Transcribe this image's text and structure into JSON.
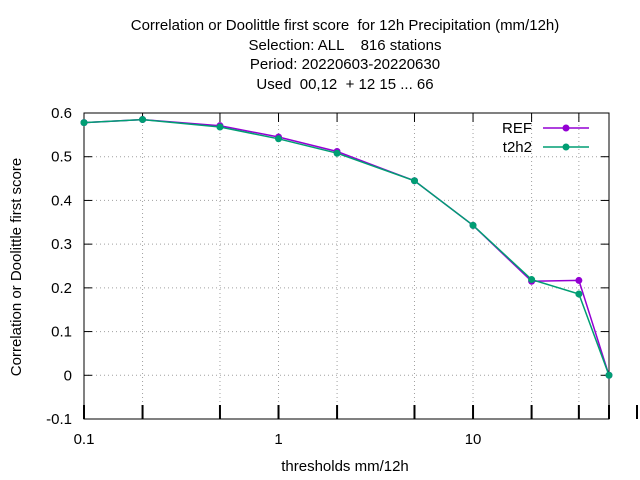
{
  "chart_data": {
    "type": "line",
    "title_lines": [
      "Correlation or Doolittle first score  for 12h Precipitation (mm/12h)",
      "Selection: ALL    816 stations",
      "Period: 20220603-20220630",
      "Used  00,12  + 12 15 ... 66"
    ],
    "xlabel": "thresholds mm/12h",
    "ylabel": "Correlation or Doolittle first score",
    "xscale": "log",
    "xlim": [
      0.1,
      50
    ],
    "ylim": [
      -0.1,
      0.6
    ],
    "xticks": [
      0.1,
      1,
      10
    ],
    "xtick_labels": [
      "0.1",
      "1",
      "10"
    ],
    "yticks": [
      -0.1,
      0,
      0.1,
      0.2,
      0.3,
      0.4,
      0.5,
      0.6
    ],
    "ytick_labels": [
      "-0.1",
      "0",
      "0.1",
      "0.2",
      "0.3",
      "0.4",
      "0.5",
      "0.6"
    ],
    "grid": true,
    "legend_position": "top-right",
    "series": [
      {
        "name": "REF",
        "color": "#9400d3",
        "x": [
          0.1,
          0.2,
          0.5,
          1,
          2,
          5,
          10,
          20,
          35,
          50
        ],
        "y": [
          0.578,
          0.585,
          0.571,
          0.545,
          0.512,
          0.445,
          0.343,
          0.215,
          0.217,
          0.0
        ]
      },
      {
        "name": "t2h2",
        "color": "#009e73",
        "x": [
          0.1,
          0.2,
          0.5,
          1,
          2,
          5,
          10,
          20,
          35,
          50
        ],
        "y": [
          0.578,
          0.585,
          0.568,
          0.541,
          0.508,
          0.445,
          0.343,
          0.219,
          0.186,
          0.0
        ]
      }
    ]
  }
}
